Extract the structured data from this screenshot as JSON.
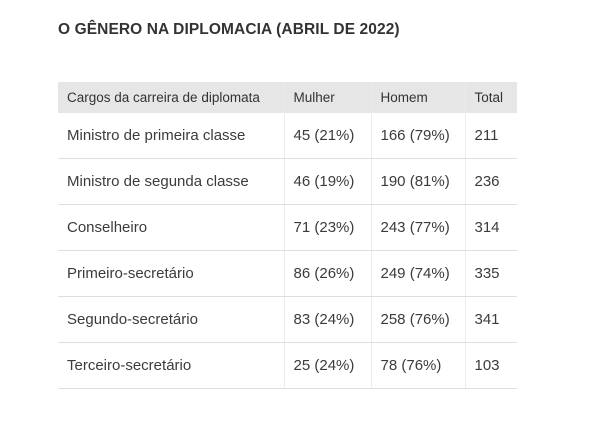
{
  "title": "O GÊNERO NA DIPLOMACIA (ABRIL DE 2022)",
  "table": {
    "headers": [
      "Cargos da carreira de diplomata",
      "Mulher",
      "Homem",
      "Total"
    ],
    "rows": [
      [
        "Ministro de primeira classe",
        "45 (21%)",
        "166 (79%)",
        "211"
      ],
      [
        "Ministro de segunda classe",
        "46 (19%)",
        "190 (81%)",
        "236"
      ],
      [
        "Conselheiro",
        "71 (23%)",
        "243 (77%)",
        "314"
      ],
      [
        "Primeiro-secretário",
        "86 (26%)",
        "249 (74%)",
        "335"
      ],
      [
        "Segundo-secretário",
        "83 (24%)",
        "258 (76%)",
        "341"
      ],
      [
        "Terceiro-secretário",
        "25 (24%)",
        "78 (76%)",
        "103"
      ]
    ]
  }
}
